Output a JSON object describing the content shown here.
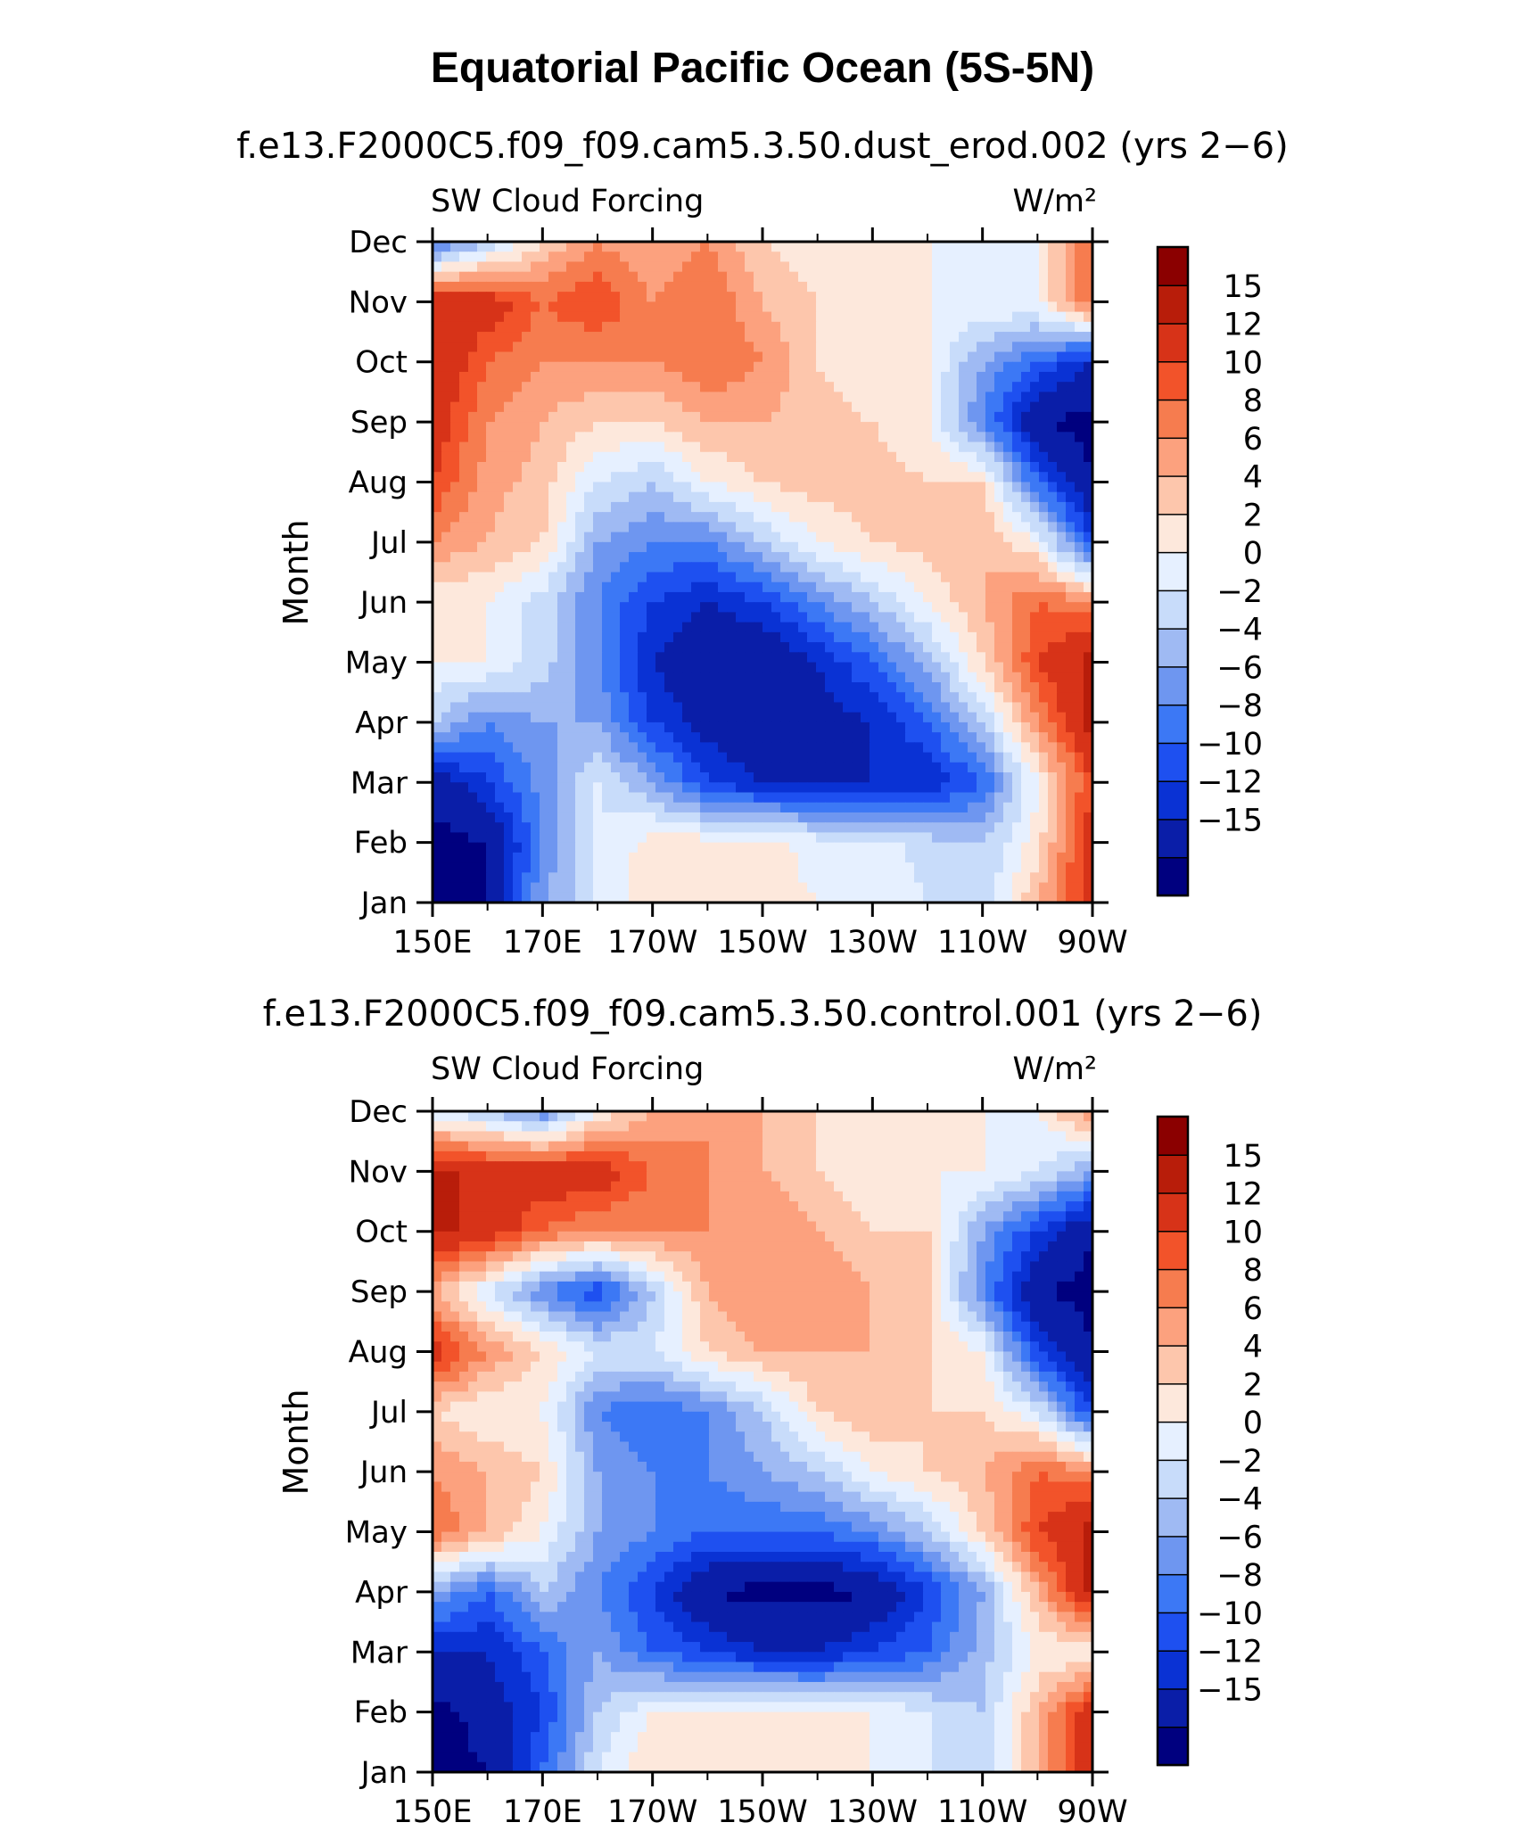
{
  "figure": {
    "title": "Equatorial Pacific Ocean (5S-5N)"
  },
  "chart_data": [
    {
      "type": "heatmap",
      "title": "f.e13.F2000C5.f09_f09.cam5.3.50.dust_erod.002 (yrs 2−6)",
      "left_label": "SW Cloud Forcing",
      "units": "W/m²",
      "xlabel": "",
      "ylabel": "Month",
      "x_ticks": [
        "150E",
        "170E",
        "170W",
        "150W",
        "130W",
        "110W",
        "90W"
      ],
      "y_ticks": [
        "Jan",
        "Feb",
        "Mar",
        "Apr",
        "May",
        "Jun",
        "Jul",
        "Aug",
        "Sep",
        "Oct",
        "Nov",
        "Dec"
      ],
      "x_values_deg_east": [
        150,
        160,
        170,
        180,
        190,
        200,
        210,
        220,
        230,
        240,
        250,
        260,
        270
      ],
      "z": [
        [
          -16,
          -15,
          -4,
          0,
          4,
          4,
          3,
          2,
          2,
          0,
          -2,
          6,
          14
        ],
        [
          -16,
          -15,
          -6,
          0,
          3,
          3,
          3,
          1,
          1,
          -1,
          -2,
          3,
          14
        ],
        [
          -14,
          -10,
          -5,
          0,
          -4,
          -10,
          -12,
          -12,
          -12,
          -12,
          -8,
          2,
          12
        ],
        [
          -2,
          -6,
          -4,
          -4,
          -10,
          -13,
          -15,
          -13,
          -12,
          -8,
          -2,
          8,
          16
        ],
        [
          2,
          2,
          -1,
          -6,
          -12,
          -15,
          -15,
          -12,
          -8,
          -3,
          4,
          12,
          16
        ],
        [
          2,
          2,
          -1,
          -6,
          -10,
          -12,
          -10,
          -6,
          -2,
          2,
          6,
          10,
          8
        ],
        [
          8,
          6,
          4,
          -4,
          -6,
          -6,
          -2,
          2,
          4,
          5,
          6,
          2,
          -10
        ],
        [
          12,
          7,
          5,
          0,
          -2,
          2,
          4,
          5,
          5,
          4,
          4,
          -8,
          -15
        ],
        [
          14,
          8,
          6,
          4,
          4,
          6,
          6,
          5,
          4,
          2,
          -6,
          -15,
          -16
        ],
        [
          15,
          10,
          8,
          8,
          8,
          10,
          8,
          4,
          2,
          2,
          -4,
          -8,
          -12
        ],
        [
          14,
          14,
          10,
          12,
          8,
          10,
          6,
          4,
          2,
          2,
          2,
          2,
          10
        ],
        [
          -8,
          -2,
          4,
          8,
          6,
          8,
          4,
          2,
          2,
          2,
          0,
          2,
          10
        ]
      ],
      "colorbar": {
        "labels": [
          "15",
          "12",
          "10",
          "8",
          "6",
          "4",
          "2",
          "0",
          "−2",
          "−4",
          "−6",
          "−8",
          "−10",
          "−12",
          "−15"
        ],
        "levels": [
          -15,
          -12,
          -10,
          -8,
          -6,
          -4,
          -2,
          0,
          2,
          4,
          6,
          8,
          10,
          12,
          15
        ],
        "colors": [
          "#00007f",
          "#0a1ea8",
          "#0a32d4",
          "#1e50f0",
          "#3c78f5",
          "#6e96f0",
          "#9fbaf3",
          "#c8dcfa",
          "#e6f0ff",
          "#fde8dc",
          "#fdc6ac",
          "#fca17e",
          "#f67c4f",
          "#f2532a",
          "#d73318",
          "#b81d0a",
          "#8b0000"
        ]
      }
    },
    {
      "type": "heatmap",
      "title": "f.e13.F2000C5.f09_f09.cam5.3.50.control.001 (yrs 2−6)",
      "left_label": "SW Cloud Forcing",
      "units": "W/m²",
      "xlabel": "",
      "ylabel": "Month",
      "x_ticks": [
        "150E",
        "170E",
        "170W",
        "150W",
        "130W",
        "110W",
        "90W"
      ],
      "y_ticks": [
        "Jan",
        "Feb",
        "Mar",
        "Apr",
        "May",
        "Jun",
        "Jul",
        "Aug",
        "Sep",
        "Oct",
        "Nov",
        "Dec"
      ],
      "x_values_deg_east": [
        150,
        160,
        170,
        180,
        190,
        200,
        210,
        220,
        230,
        240,
        250,
        260,
        270
      ],
      "z": [
        [
          -16,
          -15,
          -8,
          0,
          4,
          4,
          3,
          2,
          2,
          0,
          -2,
          6,
          14
        ],
        [
          -16,
          -14,
          -10,
          -2,
          2,
          3,
          3,
          2,
          2,
          0,
          -2,
          6,
          14
        ],
        [
          -12,
          -12,
          -8,
          -4,
          -8,
          -10,
          -12,
          -12,
          -10,
          -8,
          -3,
          2,
          2
        ],
        [
          -4,
          -8,
          -2,
          -6,
          -10,
          -15,
          -16,
          -16,
          -15,
          -10,
          -4,
          6,
          16
        ],
        [
          10,
          6,
          2,
          -4,
          -6,
          -8,
          -8,
          -8,
          -6,
          -2,
          4,
          12,
          16
        ],
        [
          8,
          6,
          4,
          -4,
          -6,
          -6,
          -4,
          -2,
          2,
          4,
          6,
          10,
          8
        ],
        [
          4,
          2,
          2,
          -6,
          -8,
          -6,
          -2,
          4,
          6,
          4,
          4,
          0,
          -10
        ],
        [
          14,
          8,
          4,
          0,
          0,
          4,
          6,
          6,
          6,
          4,
          2,
          -10,
          -15
        ],
        [
          6,
          0,
          -6,
          -10,
          -2,
          6,
          8,
          8,
          6,
          4,
          -6,
          -15,
          -16
        ],
        [
          16,
          14,
          10,
          8,
          8,
          8,
          8,
          6,
          4,
          4,
          -4,
          -10,
          -15
        ],
        [
          16,
          14,
          14,
          14,
          10,
          8,
          6,
          4,
          2,
          2,
          2,
          0,
          -4
        ],
        [
          0,
          -2,
          -6,
          2,
          6,
          8,
          6,
          4,
          4,
          4,
          2,
          2,
          8
        ]
      ],
      "colorbar": {
        "labels": [
          "15",
          "12",
          "10",
          "8",
          "6",
          "4",
          "2",
          "0",
          "−2",
          "−4",
          "−6",
          "−8",
          "−10",
          "−12",
          "−15"
        ],
        "levels": [
          -15,
          -12,
          -10,
          -8,
          -6,
          -4,
          -2,
          0,
          2,
          4,
          6,
          8,
          10,
          12,
          15
        ],
        "colors": [
          "#00007f",
          "#0a1ea8",
          "#0a32d4",
          "#1e50f0",
          "#3c78f5",
          "#6e96f0",
          "#9fbaf3",
          "#c8dcfa",
          "#e6f0ff",
          "#fde8dc",
          "#fdc6ac",
          "#fca17e",
          "#f67c4f",
          "#f2532a",
          "#d73318",
          "#b81d0a",
          "#8b0000"
        ]
      }
    }
  ]
}
